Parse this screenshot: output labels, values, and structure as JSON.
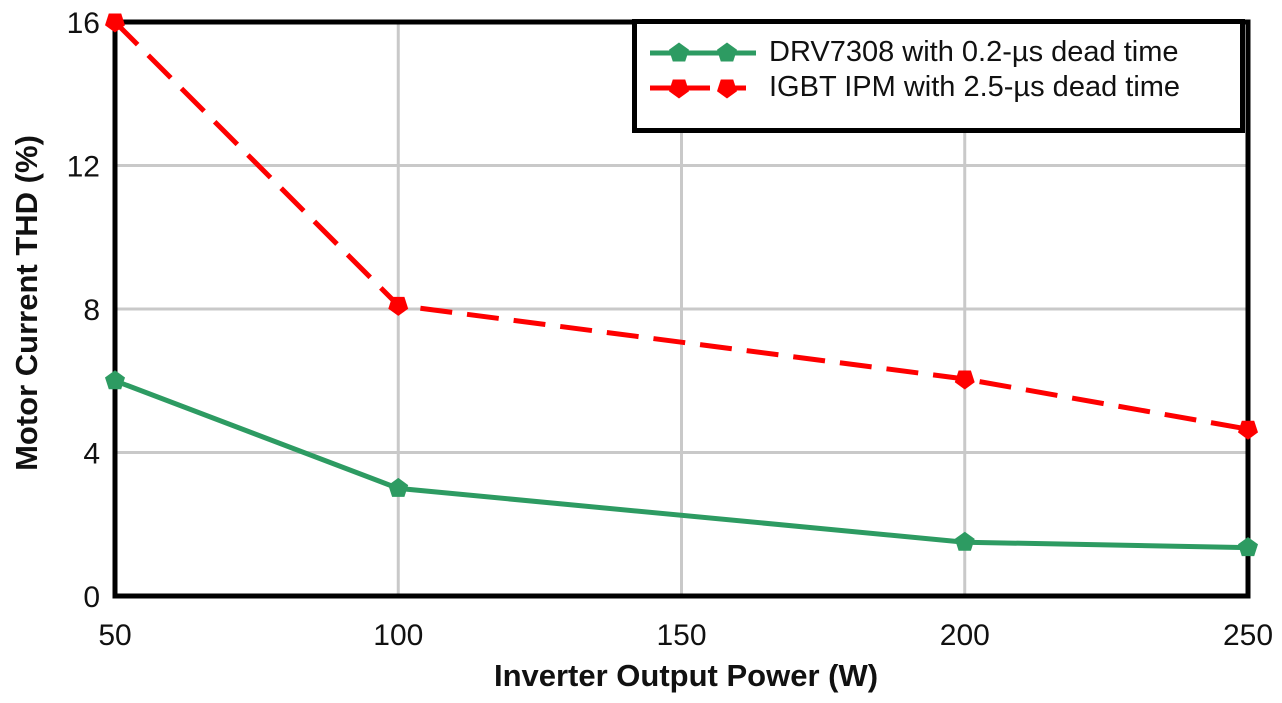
{
  "chart_data": {
    "type": "line",
    "title": "",
    "xlabel": "Inverter Output Power (W)",
    "ylabel": "Motor Current THD (%)",
    "xlim": [
      50,
      250
    ],
    "ylim": [
      0,
      16
    ],
    "xticks": [
      50,
      100,
      150,
      200,
      250
    ],
    "yticks": [
      0,
      4,
      8,
      12,
      16
    ],
    "grid": true,
    "grid_color": "#c9c9c9",
    "frame_color": "#000000",
    "background_color": "#ffffff",
    "legend_position": "top-right",
    "x": [
      50,
      100,
      200,
      250
    ],
    "series": [
      {
        "name": "DRV7308 with 0.2-µs dead time",
        "values": [
          6.0,
          3.0,
          1.5,
          1.35
        ],
        "color": "#2d9b62",
        "line": "solid",
        "marker": "pentagon-up"
      },
      {
        "name": "IGBT IPM with 2.5-µs dead time",
        "values": [
          16.0,
          8.1,
          6.05,
          4.65
        ],
        "color": "#fe0000",
        "line": "dashed",
        "marker": "pentagon-down"
      }
    ]
  }
}
